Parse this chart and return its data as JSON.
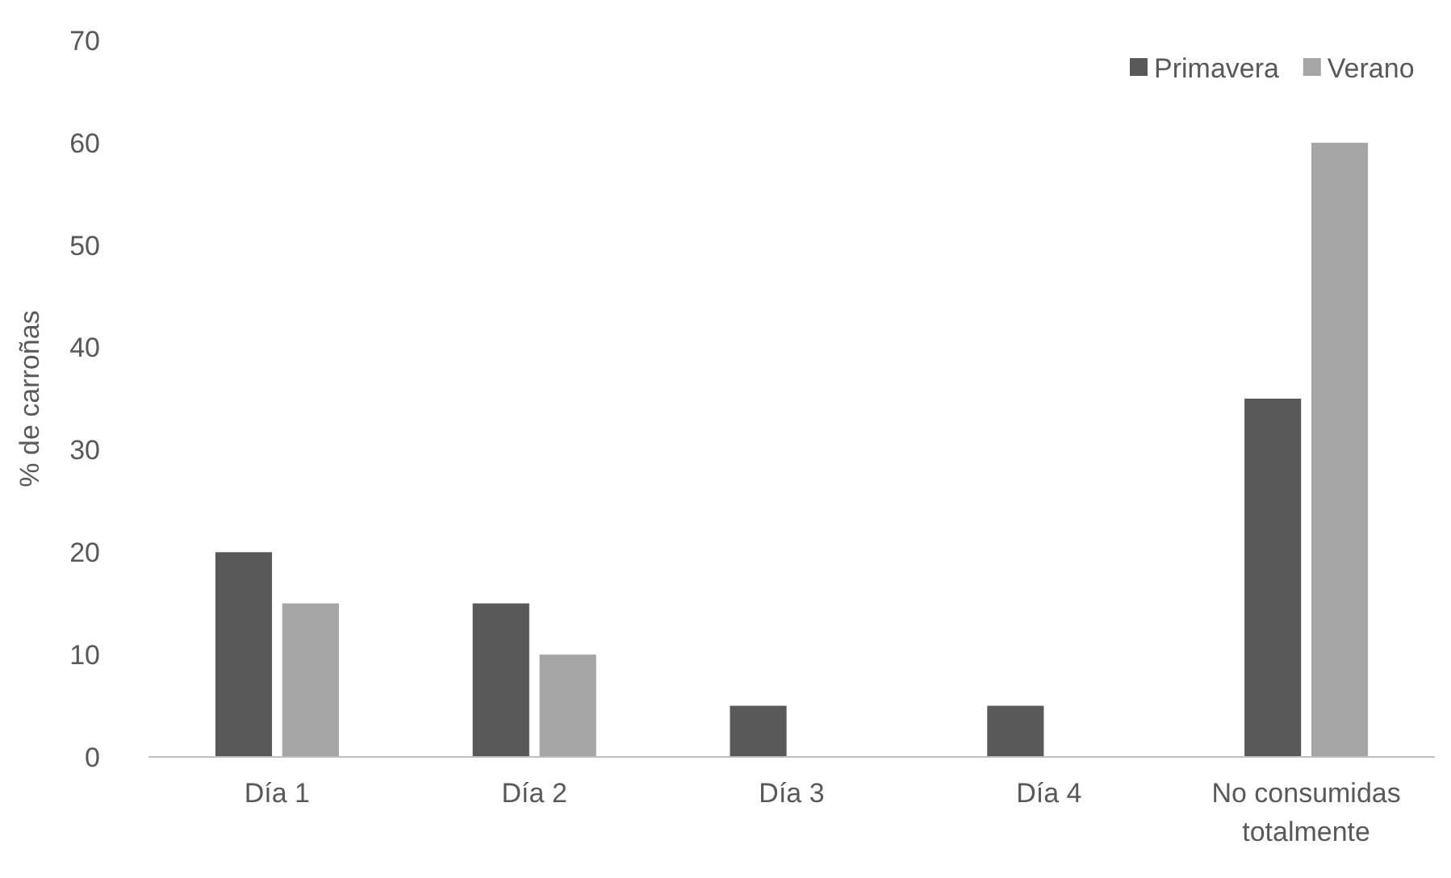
{
  "chart_data": {
    "type": "bar",
    "ylabel": "% de carroñas",
    "categories": [
      "Día 1",
      "Día 2",
      "Día 3",
      "Día 4",
      "No consumidas totalmente"
    ],
    "series": [
      {
        "name": "Primavera",
        "color": "#595959",
        "values": [
          20,
          15,
          5,
          5,
          35
        ]
      },
      {
        "name": "Verano",
        "color": "#a5a5a5",
        "values": [
          15,
          10,
          0,
          0,
          60
        ]
      }
    ],
    "ylim": [
      0,
      70
    ],
    "yticks": [
      0,
      10,
      20,
      30,
      40,
      50,
      60,
      70
    ],
    "grid": false,
    "legend": "top right"
  }
}
